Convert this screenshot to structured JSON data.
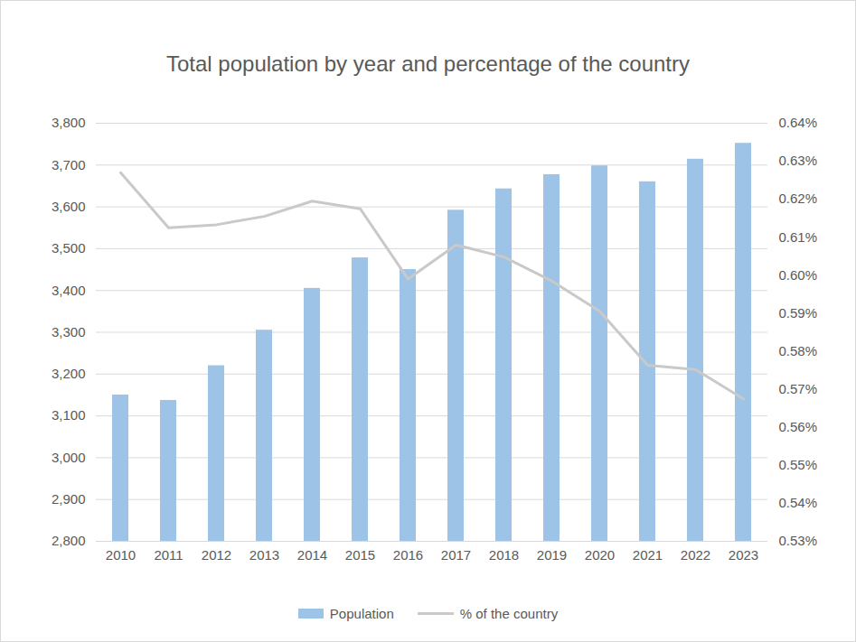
{
  "chart_data": {
    "type": "bar",
    "title": "Total population by year and percentage of the country",
    "categories": [
      "2010",
      "2011",
      "2012",
      "2013",
      "2014",
      "2015",
      "2016",
      "2017",
      "2018",
      "2019",
      "2020",
      "2021",
      "2022",
      "2023"
    ],
    "series": [
      {
        "name": "Population",
        "type": "bar",
        "color": "#9dc3e6",
        "values": [
          3150,
          3137,
          3220,
          3305,
          3405,
          3478,
          3450,
          3592,
          3643,
          3677,
          3698,
          3660,
          3714,
          3752
        ]
      },
      {
        "name": "% of the country",
        "type": "line",
        "color": "#c9c9c9",
        "axis": "y2",
        "values": [
          0.627,
          0.6125,
          0.6133,
          0.6155,
          0.6195,
          0.6175,
          0.599,
          0.608,
          0.6048,
          0.5985,
          0.5905,
          0.5763,
          0.5752,
          0.5675
        ]
      }
    ],
    "ylim": [
      2800,
      3800
    ],
    "yticks": [
      {
        "value": 2800,
        "label": "2,800"
      },
      {
        "value": 2900,
        "label": "2,900"
      },
      {
        "value": 3000,
        "label": "3,000"
      },
      {
        "value": 3100,
        "label": "3,100"
      },
      {
        "value": 3200,
        "label": "3,200"
      },
      {
        "value": 3300,
        "label": "3,300"
      },
      {
        "value": 3400,
        "label": "3,400"
      },
      {
        "value": 3500,
        "label": "3,500"
      },
      {
        "value": 3600,
        "label": "3,600"
      },
      {
        "value": 3700,
        "label": "3,700"
      },
      {
        "value": 3800,
        "label": "3,800"
      }
    ],
    "y2lim": [
      0.53,
      0.64
    ],
    "y2ticks": [
      {
        "value": 0.53,
        "label": "0.53%"
      },
      {
        "value": 0.54,
        "label": "0.54%"
      },
      {
        "value": 0.55,
        "label": "0.55%"
      },
      {
        "value": 0.56,
        "label": "0.56%"
      },
      {
        "value": 0.57,
        "label": "0.57%"
      },
      {
        "value": 0.58,
        "label": "0.58%"
      },
      {
        "value": 0.59,
        "label": "0.59%"
      },
      {
        "value": 0.6,
        "label": "0.60%"
      },
      {
        "value": 0.61,
        "label": "0.61%"
      },
      {
        "value": 0.62,
        "label": "0.62%"
      },
      {
        "value": 0.63,
        "label": "0.63%"
      },
      {
        "value": 0.64,
        "label": "0.64%"
      }
    ],
    "grid": true,
    "legend": "bottom"
  }
}
